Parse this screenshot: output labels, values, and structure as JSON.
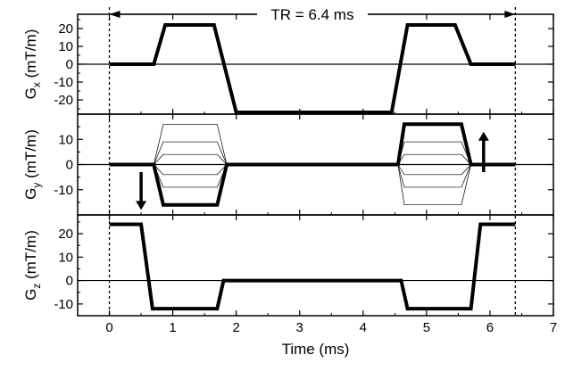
{
  "chart_data": {
    "type": "line",
    "annotation": "TR = 6.4 ms",
    "tr_markers_x": [
      0,
      6.4
    ],
    "xlabel": "Time (ms)",
    "xlim": [
      -0.5,
      7
    ],
    "xticks": [
      0,
      1,
      2,
      3,
      4,
      5,
      6,
      7
    ],
    "panels": [
      {
        "ylabel_main": "G",
        "ylabel_sub": "x",
        "ylabel_unit": " (mT/m)",
        "ylim": [
          -28,
          28
        ],
        "yticks": [
          -20,
          -10,
          0,
          10,
          20
        ],
        "series": [
          {
            "x": [
              0,
              0.7,
              0.88,
              1.65,
              2.0,
              4.45,
              4.7,
              5.45,
              5.7,
              6.4
            ],
            "y": [
              0,
              0,
              22,
              22,
              -27,
              -27,
              22,
              22,
              0,
              0
            ]
          }
        ]
      },
      {
        "ylabel_main": "G",
        "ylabel_sub": "y",
        "ylabel_unit": " (mT/m)",
        "ylim": [
          -20,
          20
        ],
        "yticks": [
          -10,
          0,
          10
        ],
        "series": [
          {
            "x": [
              0,
              0.7,
              0.85,
              1.7,
              1.85,
              4.5,
              4.55,
              4.65,
              5.55,
              5.7,
              6.4
            ],
            "y": [
              0,
              0,
              -16,
              -16,
              0,
              0,
              0,
              16,
              16,
              0,
              0
            ]
          }
        ],
        "phase_encode_levels": [
          16,
          9,
          4,
          0,
          -4,
          -9,
          -16
        ],
        "arrows": [
          {
            "x": 0.5,
            "direction": "down"
          },
          {
            "x": 5.9,
            "direction": "up"
          }
        ]
      },
      {
        "ylabel_main": "G",
        "ylabel_sub": "z",
        "ylabel_unit": " (mT/m)",
        "ylim": [
          -15,
          28
        ],
        "yticks": [
          -10,
          0,
          10,
          20
        ],
        "series": [
          {
            "x": [
              0,
              0.5,
              0.68,
              1.7,
              1.8,
              4.6,
              4.7,
              5.7,
              5.85,
              6.4
            ],
            "y": [
              24,
              24,
              -12,
              -12,
              0,
              0,
              -12,
              -12,
              24,
              24
            ]
          }
        ]
      }
    ]
  }
}
